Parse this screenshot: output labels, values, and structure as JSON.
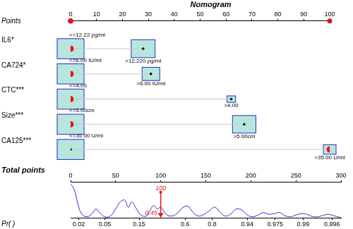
{
  "chart_data": {
    "type": "nomogram",
    "title": "Nomogram",
    "points_axis": {
      "label": "Points",
      "xlim": [
        0,
        100
      ],
      "xticks": [
        0,
        10,
        20,
        30,
        40,
        50,
        60,
        70,
        80,
        90,
        100
      ]
    },
    "variables": [
      {
        "name": "IL6*",
        "selected": 0,
        "levels": [
          {
            "label": "<=12.22 pg/ml",
            "points": 0,
            "weight": 0.58
          },
          {
            "label": ">12.220 pg/ml",
            "points": 28,
            "weight": 0.46
          }
        ]
      },
      {
        "name": "CA724*",
        "selected": 0,
        "levels": [
          {
            "label": "<=6.00 IU/ml",
            "points": 0,
            "weight": 0.58
          },
          {
            "label": ">6.00 IU/ml",
            "points": 31,
            "weight": 0.25
          }
        ]
      },
      {
        "name": "CTC***",
        "selected": 0,
        "levels": [
          {
            "label": "<=4.00",
            "points": 0,
            "weight": 0.58
          },
          {
            "label": ">4.00",
            "points": 62,
            "weight": 0.06
          }
        ]
      },
      {
        "name": "Size***",
        "selected": 0,
        "levels": [
          {
            "label": "<=5.00cm",
            "points": 0,
            "weight": 0.58
          },
          {
            "label": ">5.00cm",
            "points": 67,
            "weight": 0.44
          }
        ]
      },
      {
        "name": "CA125***",
        "selected": 1,
        "levels": [
          {
            "label": "<=35.00 U/ml",
            "points": 0,
            "weight": 0.58
          },
          {
            "label": ">35.00 U/ml",
            "points": 100,
            "weight": 0.13
          }
        ]
      }
    ],
    "total_axis": {
      "label": "Total points",
      "xlim": [
        0,
        300
      ],
      "xticks": [
        0,
        50,
        100,
        150,
        200,
        250,
        300
      ]
    },
    "density": {
      "ylim": [
        0,
        1
      ],
      "x": [
        0,
        4,
        8,
        12,
        18,
        24,
        28,
        32,
        38,
        44,
        50,
        55,
        60,
        64,
        68,
        72,
        78,
        84,
        88,
        92,
        96,
        100,
        106,
        112,
        118,
        124,
        130,
        136,
        142,
        148,
        154,
        160,
        166,
        172,
        178,
        184,
        190,
        196,
        202,
        208,
        214,
        220,
        226,
        232,
        238,
        244,
        250,
        256,
        262,
        268,
        274,
        280,
        286,
        292,
        298,
        300
      ],
      "y": [
        0.95,
        0.8,
        0.4,
        0.12,
        0.03,
        0.12,
        0.25,
        0.15,
        0.03,
        0.05,
        0.25,
        0.45,
        0.5,
        0.3,
        0.45,
        0.3,
        0.08,
        0.05,
        0.2,
        0.35,
        0.25,
        0.3,
        0.1,
        0.05,
        0.12,
        0.28,
        0.33,
        0.15,
        0.05,
        0.1,
        0.2,
        0.3,
        0.15,
        0.05,
        0.12,
        0.25,
        0.22,
        0.08,
        0.03,
        0.08,
        0.15,
        0.1,
        0.12,
        0.15,
        0.06,
        0.03,
        0.08,
        0.12,
        0.1,
        0.04,
        0.03,
        0.07,
        0.1,
        0.06,
        0.02,
        0.01
      ]
    },
    "probability_axis": {
      "label": "Pr( )",
      "ticks": [
        {
          "value": 0.02,
          "points": 9
        },
        {
          "value": 0.05,
          "points": 38
        },
        {
          "value": 0.15,
          "points": 76
        },
        {
          "value": 0.6,
          "points": 127
        },
        {
          "value": 0.8,
          "points": 157
        },
        {
          "value": 0.94,
          "points": 196
        },
        {
          "value": 0.975,
          "points": 227
        },
        {
          "value": 0.99,
          "points": 258
        },
        {
          "value": 0.996,
          "points": 290
        }
      ]
    },
    "patient": {
      "total_points": 100,
      "probability": 0.45
    }
  }
}
